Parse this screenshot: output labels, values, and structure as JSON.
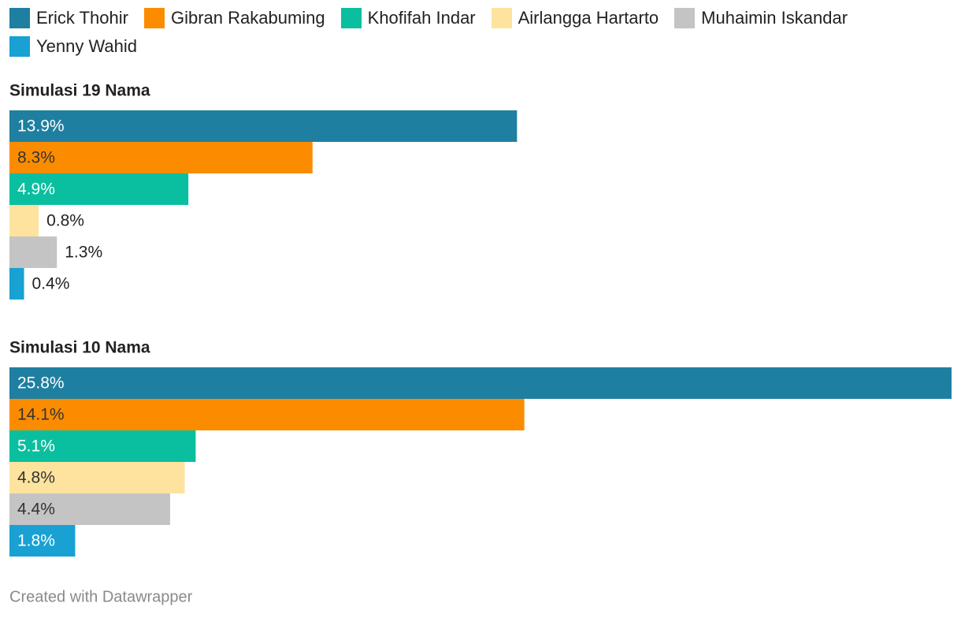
{
  "chart_data": {
    "type": "bar",
    "orientation": "horizontal",
    "categories": [
      "Simulasi 19 Nama",
      "Simulasi 10 Nama"
    ],
    "series": [
      {
        "name": "Erick Thohir",
        "color": "#1f7fa1",
        "values": [
          13.9,
          25.8
        ],
        "value_labels": [
          "13.9%",
          "25.8%"
        ]
      },
      {
        "name": "Gibran Rakabuming",
        "color": "#fb8c00",
        "values": [
          8.3,
          14.1
        ],
        "value_labels": [
          "8.3%",
          "14.1%"
        ]
      },
      {
        "name": "Khofifah Indar",
        "color": "#0abf9f",
        "values": [
          4.9,
          5.1
        ],
        "value_labels": [
          "4.9%",
          "5.1%"
        ]
      },
      {
        "name": "Airlangga Hartarto",
        "color": "#fee39e",
        "values": [
          0.8,
          4.8
        ],
        "value_labels": [
          "0.8%",
          "4.8%"
        ]
      },
      {
        "name": "Muhaimin Iskandar",
        "color": "#c4c4c4",
        "values": [
          1.3,
          4.4
        ],
        "value_labels": [
          "1.3%",
          "4.4%"
        ]
      },
      {
        "name": "Yenny Wahid",
        "color": "#18a1d2",
        "values": [
          0.4,
          1.8
        ],
        "value_labels": [
          "0.4%",
          "1.8%"
        ]
      }
    ],
    "source": "Created with Datawrapper"
  }
}
